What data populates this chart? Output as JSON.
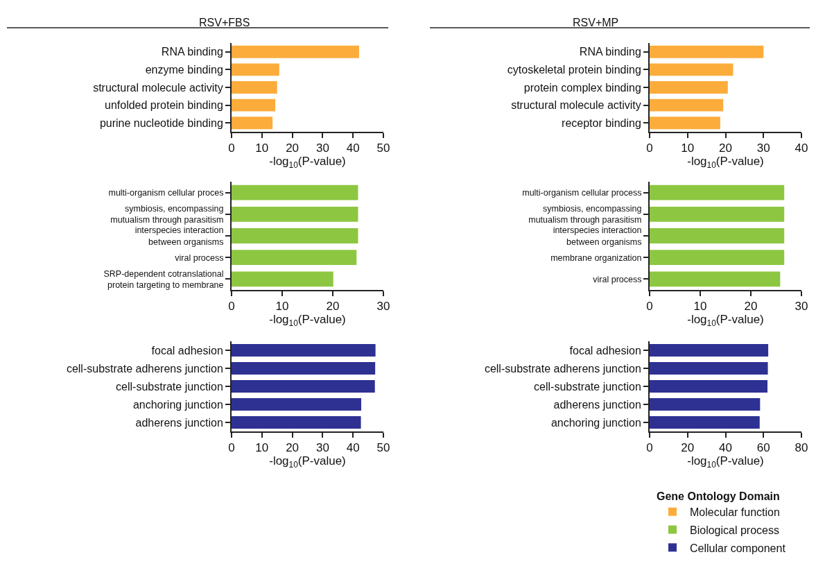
{
  "chart_data": [
    {
      "type": "bar",
      "orientation": "horizontal",
      "title": "RSV+FBS",
      "categories": [
        "RNA binding",
        "enzyme binding",
        "structural molecule activity",
        "unfolded protein binding",
        "purine nucleotide binding"
      ],
      "series": [
        {
          "name": "Molecular function",
          "color": "#fbac3b",
          "values": [
            42.0,
            15.7,
            15.0,
            14.4,
            13.5
          ]
        }
      ],
      "xlim": [
        0,
        50
      ],
      "xticks": [
        0,
        10,
        20,
        30,
        40,
        50
      ],
      "xlabel": "-log$_{10}$(P-value)",
      "grid": false
    },
    {
      "type": "bar",
      "orientation": "horizontal",
      "title": "RSV+MP",
      "categories": [
        "RNA binding",
        "cytoskeletal protein binding",
        "protein complex binding",
        "structural molecule activity",
        "receptor binding"
      ],
      "series": [
        {
          "name": "Molecular function",
          "color": "#fbac3b",
          "values": [
            30.0,
            22.0,
            20.6,
            19.4,
            18.6
          ]
        }
      ],
      "xlim": [
        0,
        40
      ],
      "xticks": [
        0,
        10,
        20,
        30,
        40
      ],
      "xlabel": "-log$_{10}$(P-value)",
      "grid": false
    },
    {
      "type": "bar",
      "orientation": "horizontal",
      "categories": [
        "multi-organism cellular proces",
        "symbiosis, encompassing\nmutualism through parasitism",
        "interspecies interaction\nbetween organisms",
        "viral process",
        "SRP-dependent cotranslational\nprotein targeting to membrane"
      ],
      "series": [
        {
          "name": "Biological process",
          "color": "#8dc641",
          "values": [
            25.0,
            25.0,
            25.0,
            24.7,
            20.1
          ]
        }
      ],
      "xlim": [
        0,
        30
      ],
      "xticks": [
        0,
        10,
        20,
        30
      ],
      "xlabel": "-log$_{10}$(P-value)",
      "grid": false
    },
    {
      "type": "bar",
      "orientation": "horizontal",
      "categories": [
        "multi-organism cellular process",
        "symbiosis, encompassing\nmutualism through parasitism",
        "interspecies interaction\nbetween organisms",
        "membrane organization",
        "viral process"
      ],
      "series": [
        {
          "name": "Biological process",
          "color": "#8dc641",
          "values": [
            26.6,
            26.6,
            26.6,
            26.6,
            25.8
          ]
        }
      ],
      "xlim": [
        0,
        30
      ],
      "xticks": [
        0,
        10,
        20,
        30
      ],
      "xlabel": "-log$_{10}$(P-value)",
      "grid": false
    },
    {
      "type": "bar",
      "orientation": "horizontal",
      "categories": [
        "focal adhesion",
        "cell-substrate adherens junction",
        "cell-substrate junction",
        "anchoring junction",
        "adherens junction"
      ],
      "series": [
        {
          "name": "Cellular component",
          "color": "#2e3192",
          "values": [
            47.4,
            47.3,
            47.2,
            42.7,
            42.6
          ]
        }
      ],
      "xlim": [
        0,
        50
      ],
      "xticks": [
        0,
        10,
        20,
        30,
        40,
        50
      ],
      "xlabel": "-log$_{10}$(P-value)",
      "grid": false
    },
    {
      "type": "bar",
      "orientation": "horizontal",
      "categories": [
        "focal adhesion",
        "cell-substrate adherens junction",
        "cell-substrate junction",
        "adherens junction",
        "anchoring junction"
      ],
      "series": [
        {
          "name": "Cellular component",
          "color": "#2e3192",
          "values": [
            62.5,
            62.3,
            62.1,
            58.2,
            58.0
          ]
        }
      ],
      "xlim": [
        0,
        80
      ],
      "xticks": [
        0,
        20,
        40,
        60,
        80
      ],
      "xlabel": "-log$_{10}$(P-value)",
      "grid": false,
      "legend": "bottom right",
      "legend_title": "Gene Ontology Domain"
    }
  ]
}
